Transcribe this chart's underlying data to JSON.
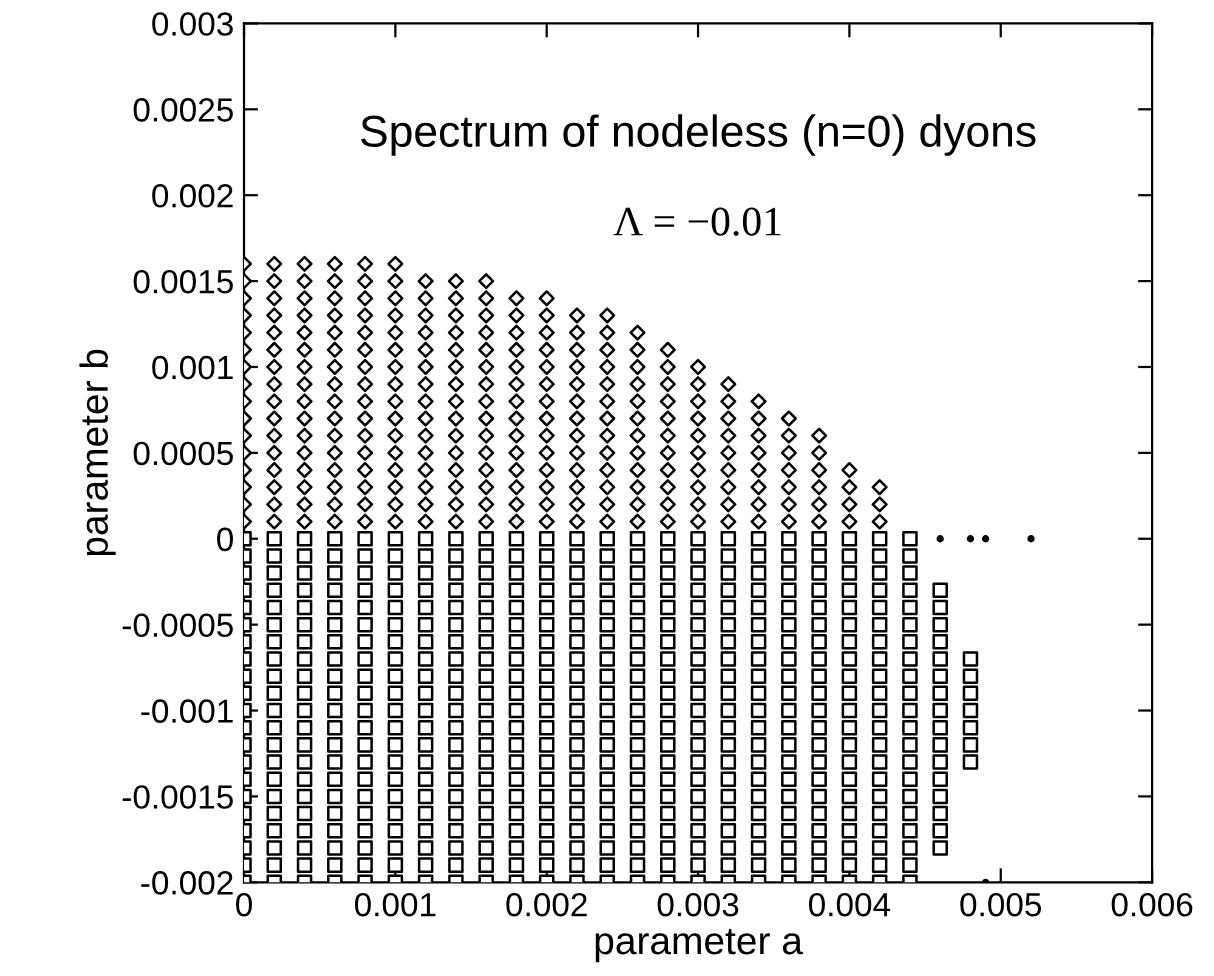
{
  "chart_data": {
    "type": "scatter",
    "title": "Spectrum of nodeless (n=0) dyons",
    "subtitle": "Λ = −0.01",
    "xlabel": "parameter a",
    "ylabel": "parameter b",
    "xlim": [
      0,
      0.006
    ],
    "ylim": [
      -0.002,
      0.003
    ],
    "xticks": [
      0,
      0.001,
      0.002,
      0.003,
      0.004,
      0.005,
      0.006
    ],
    "yticks": [
      -0.002,
      -0.0015,
      -0.001,
      -0.0005,
      0,
      0.0005,
      0.001,
      0.0015,
      0.002,
      0.0025,
      0.003
    ],
    "grid": false,
    "legend": false,
    "series": [
      {
        "type": "scatter",
        "marker": "diamond",
        "color": "#000000",
        "x": [
          0,
          0,
          0,
          0,
          0,
          0,
          0,
          0,
          0,
          0,
          0,
          0,
          0,
          0,
          0,
          0
        ],
        "values": [
          0.0001,
          0.0002,
          0.0003,
          0.0004,
          0.0005,
          0.0006,
          0.0007,
          0.0008,
          0.0009,
          0.001,
          0.0011,
          0.0012,
          0.0013,
          0.0014,
          0.0015,
          0.0016
        ]
      },
      {
        "type": "scatter",
        "marker": "diamond",
        "color": "#000000",
        "x": [
          0.0002,
          0.0002,
          0.0002,
          0.0002,
          0.0002,
          0.0002,
          0.0002,
          0.0002,
          0.0002,
          0.0002,
          0.0002,
          0.0002,
          0.0002,
          0.0002,
          0.0002,
          0.0002
        ],
        "values": [
          0.0001,
          0.0002,
          0.0003,
          0.0004,
          0.0005,
          0.0006,
          0.0007,
          0.0008,
          0.0009,
          0.001,
          0.0011,
          0.0012,
          0.0013,
          0.0014,
          0.0015,
          0.0016
        ]
      },
      {
        "type": "scatter",
        "marker": "diamond",
        "color": "#000000",
        "x": [
          0.0004,
          0.0004,
          0.0004,
          0.0004,
          0.0004,
          0.0004,
          0.0004,
          0.0004,
          0.0004,
          0.0004,
          0.0004,
          0.0004,
          0.0004,
          0.0004,
          0.0004,
          0.0004
        ],
        "values": [
          0.0001,
          0.0002,
          0.0003,
          0.0004,
          0.0005,
          0.0006,
          0.0007,
          0.0008,
          0.0009,
          0.001,
          0.0011,
          0.0012,
          0.0013,
          0.0014,
          0.0015,
          0.0016
        ]
      },
      {
        "type": "scatter",
        "marker": "diamond",
        "color": "#000000",
        "x": [
          0.0006,
          0.0006,
          0.0006,
          0.0006,
          0.0006,
          0.0006,
          0.0006,
          0.0006,
          0.0006,
          0.0006,
          0.0006,
          0.0006,
          0.0006,
          0.0006,
          0.0006,
          0.0006
        ],
        "values": [
          0.0001,
          0.0002,
          0.0003,
          0.0004,
          0.0005,
          0.0006,
          0.0007,
          0.0008,
          0.0009,
          0.001,
          0.0011,
          0.0012,
          0.0013,
          0.0014,
          0.0015,
          0.0016
        ]
      },
      {
        "type": "scatter",
        "marker": "diamond",
        "color": "#000000",
        "x": [
          0.0008,
          0.0008,
          0.0008,
          0.0008,
          0.0008,
          0.0008,
          0.0008,
          0.0008,
          0.0008,
          0.0008,
          0.0008,
          0.0008,
          0.0008,
          0.0008,
          0.0008,
          0.0008
        ],
        "values": [
          0.0001,
          0.0002,
          0.0003,
          0.0004,
          0.0005,
          0.0006,
          0.0007,
          0.0008,
          0.0009,
          0.001,
          0.0011,
          0.0012,
          0.0013,
          0.0014,
          0.0015,
          0.0016
        ]
      },
      {
        "type": "scatter",
        "marker": "diamond",
        "color": "#000000",
        "x": [
          0.001,
          0.001,
          0.001,
          0.001,
          0.001,
          0.001,
          0.001,
          0.001,
          0.001,
          0.001,
          0.001,
          0.001,
          0.001,
          0.001,
          0.001,
          0.001
        ],
        "values": [
          0.0001,
          0.0002,
          0.0003,
          0.0004,
          0.0005,
          0.0006,
          0.0007,
          0.0008,
          0.0009,
          0.001,
          0.0011,
          0.0012,
          0.0013,
          0.0014,
          0.0015,
          0.0016
        ]
      },
      {
        "type": "scatter",
        "marker": "diamond",
        "color": "#000000",
        "x": [
          0.0012,
          0.0012,
          0.0012,
          0.0012,
          0.0012,
          0.0012,
          0.0012,
          0.0012,
          0.0012,
          0.0012,
          0.0012,
          0.0012,
          0.0012,
          0.0012,
          0.0012
        ],
        "values": [
          0.0001,
          0.0002,
          0.0003,
          0.0004,
          0.0005,
          0.0006,
          0.0007,
          0.0008,
          0.0009,
          0.001,
          0.0011,
          0.0012,
          0.0013,
          0.0014,
          0.0015
        ]
      },
      {
        "type": "scatter",
        "marker": "diamond",
        "color": "#000000",
        "x": [
          0.0014,
          0.0014,
          0.0014,
          0.0014,
          0.0014,
          0.0014,
          0.0014,
          0.0014,
          0.0014,
          0.0014,
          0.0014,
          0.0014,
          0.0014,
          0.0014,
          0.0014
        ],
        "values": [
          0.0001,
          0.0002,
          0.0003,
          0.0004,
          0.0005,
          0.0006,
          0.0007,
          0.0008,
          0.0009,
          0.001,
          0.0011,
          0.0012,
          0.0013,
          0.0014,
          0.0015
        ]
      },
      {
        "type": "scatter",
        "marker": "diamond",
        "color": "#000000",
        "x": [
          0.0016,
          0.0016,
          0.0016,
          0.0016,
          0.0016,
          0.0016,
          0.0016,
          0.0016,
          0.0016,
          0.0016,
          0.0016,
          0.0016,
          0.0016,
          0.0016,
          0.0016
        ],
        "values": [
          0.0001,
          0.0002,
          0.0003,
          0.0004,
          0.0005,
          0.0006,
          0.0007,
          0.0008,
          0.0009,
          0.001,
          0.0011,
          0.0012,
          0.0013,
          0.0014,
          0.0015
        ]
      },
      {
        "type": "scatter",
        "marker": "diamond",
        "color": "#000000",
        "x": [
          0.0018,
          0.0018,
          0.0018,
          0.0018,
          0.0018,
          0.0018,
          0.0018,
          0.0018,
          0.0018,
          0.0018,
          0.0018,
          0.0018,
          0.0018,
          0.0018
        ],
        "values": [
          0.0001,
          0.0002,
          0.0003,
          0.0004,
          0.0005,
          0.0006,
          0.0007,
          0.0008,
          0.0009,
          0.001,
          0.0011,
          0.0012,
          0.0013,
          0.0014
        ]
      },
      {
        "type": "scatter",
        "marker": "diamond",
        "color": "#000000",
        "x": [
          0.002,
          0.002,
          0.002,
          0.002,
          0.002,
          0.002,
          0.002,
          0.002,
          0.002,
          0.002,
          0.002,
          0.002,
          0.002,
          0.002
        ],
        "values": [
          0.0001,
          0.0002,
          0.0003,
          0.0004,
          0.0005,
          0.0006,
          0.0007,
          0.0008,
          0.0009,
          0.001,
          0.0011,
          0.0012,
          0.0013,
          0.0014
        ]
      },
      {
        "type": "scatter",
        "marker": "diamond",
        "color": "#000000",
        "x": [
          0.0022,
          0.0022,
          0.0022,
          0.0022,
          0.0022,
          0.0022,
          0.0022,
          0.0022,
          0.0022,
          0.0022,
          0.0022,
          0.0022,
          0.0022
        ],
        "values": [
          0.0001,
          0.0002,
          0.0003,
          0.0004,
          0.0005,
          0.0006,
          0.0007,
          0.0008,
          0.0009,
          0.001,
          0.0011,
          0.0012,
          0.0013
        ]
      },
      {
        "type": "scatter",
        "marker": "diamond",
        "color": "#000000",
        "x": [
          0.0024,
          0.0024,
          0.0024,
          0.0024,
          0.0024,
          0.0024,
          0.0024,
          0.0024,
          0.0024,
          0.0024,
          0.0024,
          0.0024,
          0.0024
        ],
        "values": [
          0.0001,
          0.0002,
          0.0003,
          0.0004,
          0.0005,
          0.0006,
          0.0007,
          0.0008,
          0.0009,
          0.001,
          0.0011,
          0.0012,
          0.0013
        ]
      },
      {
        "type": "scatter",
        "marker": "diamond",
        "color": "#000000",
        "x": [
          0.0026,
          0.0026,
          0.0026,
          0.0026,
          0.0026,
          0.0026,
          0.0026,
          0.0026,
          0.0026,
          0.0026,
          0.0026,
          0.0026
        ],
        "values": [
          0.0001,
          0.0002,
          0.0003,
          0.0004,
          0.0005,
          0.0006,
          0.0007,
          0.0008,
          0.0009,
          0.001,
          0.0011,
          0.0012
        ]
      },
      {
        "type": "scatter",
        "marker": "diamond",
        "color": "#000000",
        "x": [
          0.0028,
          0.0028,
          0.0028,
          0.0028,
          0.0028,
          0.0028,
          0.0028,
          0.0028,
          0.0028,
          0.0028,
          0.0028
        ],
        "values": [
          0.0001,
          0.0002,
          0.0003,
          0.0004,
          0.0005,
          0.0006,
          0.0007,
          0.0008,
          0.0009,
          0.001,
          0.0011
        ]
      },
      {
        "type": "scatter",
        "marker": "diamond",
        "color": "#000000",
        "x": [
          0.003,
          0.003,
          0.003,
          0.003,
          0.003,
          0.003,
          0.003,
          0.003,
          0.003,
          0.003
        ],
        "values": [
          0.0001,
          0.0002,
          0.0003,
          0.0004,
          0.0005,
          0.0006,
          0.0007,
          0.0008,
          0.0009,
          0.001
        ]
      },
      {
        "type": "scatter",
        "marker": "diamond",
        "color": "#000000",
        "x": [
          0.0032,
          0.0032,
          0.0032,
          0.0032,
          0.0032,
          0.0032,
          0.0032,
          0.0032,
          0.0032
        ],
        "values": [
          0.0001,
          0.0002,
          0.0003,
          0.0004,
          0.0005,
          0.0006,
          0.0007,
          0.0008,
          0.0009
        ]
      },
      {
        "type": "scatter",
        "marker": "diamond",
        "color": "#000000",
        "x": [
          0.0034,
          0.0034,
          0.0034,
          0.0034,
          0.0034,
          0.0034,
          0.0034,
          0.0034
        ],
        "values": [
          0.0001,
          0.0002,
          0.0003,
          0.0004,
          0.0005,
          0.0006,
          0.0007,
          0.0008
        ]
      },
      {
        "type": "scatter",
        "marker": "diamond",
        "color": "#000000",
        "x": [
          0.0036,
          0.0036,
          0.0036,
          0.0036,
          0.0036,
          0.0036,
          0.0036
        ],
        "values": [
          0.0001,
          0.0002,
          0.0003,
          0.0004,
          0.0005,
          0.0006,
          0.0007
        ]
      },
      {
        "type": "scatter",
        "marker": "diamond",
        "color": "#000000",
        "x": [
          0.0038,
          0.0038,
          0.0038,
          0.0038,
          0.0038,
          0.0038
        ],
        "values": [
          0.0001,
          0.0002,
          0.0003,
          0.0004,
          0.0005,
          0.0006
        ]
      },
      {
        "type": "scatter",
        "marker": "diamond",
        "color": "#000000",
        "x": [
          0.004,
          0.004,
          0.004,
          0.004
        ],
        "values": [
          0.0001,
          0.0002,
          0.0003,
          0.0004
        ]
      },
      {
        "type": "scatter",
        "marker": "diamond",
        "color": "#000000",
        "x": [
          0.0042,
          0.0042,
          0.0042
        ],
        "values": [
          0.0001,
          0.0002,
          0.0003
        ]
      },
      {
        "type": "scatter",
        "marker": "square",
        "color": "#000000",
        "x": [
          0,
          0.0002,
          0.0004,
          0.0006,
          0.0008,
          0.001,
          0.0012,
          0.0014,
          0.0016,
          0.0018,
          0.002,
          0.0022,
          0.0024,
          0.0026,
          0.0028,
          0.003,
          0.0032,
          0.0034,
          0.0036,
          0.0038,
          0.004,
          0.0042,
          0.0044
        ],
        "values": [
          0,
          0,
          0,
          0,
          0,
          0,
          0,
          0,
          0,
          0,
          0,
          0,
          0,
          0,
          0,
          0,
          0,
          0,
          0,
          0,
          0,
          0,
          0
        ]
      },
      {
        "type": "scatter",
        "marker": "square",
        "color": "#000000",
        "x": [
          0,
          0,
          0,
          0,
          0,
          0,
          0,
          0,
          0,
          0,
          0,
          0,
          0,
          0,
          0,
          0,
          0,
          0,
          0,
          0
        ],
        "values": [
          -0.0001,
          -0.0002,
          -0.0003,
          -0.0004,
          -0.0005,
          -0.0006,
          -0.0007,
          -0.0008,
          -0.0009,
          -0.001,
          -0.0011,
          -0.0012,
          -0.0013,
          -0.0014,
          -0.0015,
          -0.0016,
          -0.0017,
          -0.0018,
          -0.0019,
          -0.002
        ]
      },
      {
        "type": "scatter",
        "marker": "square",
        "color": "#000000",
        "x": [
          0.0002,
          0.0002,
          0.0002,
          0.0002,
          0.0002,
          0.0002,
          0.0002,
          0.0002,
          0.0002,
          0.0002,
          0.0002,
          0.0002,
          0.0002,
          0.0002,
          0.0002,
          0.0002,
          0.0002,
          0.0002,
          0.0002,
          0.0002
        ],
        "values": [
          -0.0001,
          -0.0002,
          -0.0003,
          -0.0004,
          -0.0005,
          -0.0006,
          -0.0007,
          -0.0008,
          -0.0009,
          -0.001,
          -0.0011,
          -0.0012,
          -0.0013,
          -0.0014,
          -0.0015,
          -0.0016,
          -0.0017,
          -0.0018,
          -0.0019,
          -0.002
        ]
      },
      {
        "type": "scatter",
        "marker": "square",
        "color": "#000000",
        "x": [
          0.0004,
          0.0004,
          0.0004,
          0.0004,
          0.0004,
          0.0004,
          0.0004,
          0.0004,
          0.0004,
          0.0004,
          0.0004,
          0.0004,
          0.0004,
          0.0004,
          0.0004,
          0.0004,
          0.0004,
          0.0004,
          0.0004,
          0.0004
        ],
        "values": [
          -0.0001,
          -0.0002,
          -0.0003,
          -0.0004,
          -0.0005,
          -0.0006,
          -0.0007,
          -0.0008,
          -0.0009,
          -0.001,
          -0.0011,
          -0.0012,
          -0.0013,
          -0.0014,
          -0.0015,
          -0.0016,
          -0.0017,
          -0.0018,
          -0.0019,
          -0.002
        ]
      },
      {
        "type": "scatter",
        "marker": "square",
        "color": "#000000",
        "x": [
          0.0006,
          0.0006,
          0.0006,
          0.0006,
          0.0006,
          0.0006,
          0.0006,
          0.0006,
          0.0006,
          0.0006,
          0.0006,
          0.0006,
          0.0006,
          0.0006,
          0.0006,
          0.0006,
          0.0006,
          0.0006,
          0.0006,
          0.0006
        ],
        "values": [
          -0.0001,
          -0.0002,
          -0.0003,
          -0.0004,
          -0.0005,
          -0.0006,
          -0.0007,
          -0.0008,
          -0.0009,
          -0.001,
          -0.0011,
          -0.0012,
          -0.0013,
          -0.0014,
          -0.0015,
          -0.0016,
          -0.0017,
          -0.0018,
          -0.0019,
          -0.002
        ]
      },
      {
        "type": "scatter",
        "marker": "square",
        "color": "#000000",
        "x": [
          0.0008,
          0.0008,
          0.0008,
          0.0008,
          0.0008,
          0.0008,
          0.0008,
          0.0008,
          0.0008,
          0.0008,
          0.0008,
          0.0008,
          0.0008,
          0.0008,
          0.0008,
          0.0008,
          0.0008,
          0.0008,
          0.0008,
          0.0008
        ],
        "values": [
          -0.0001,
          -0.0002,
          -0.0003,
          -0.0004,
          -0.0005,
          -0.0006,
          -0.0007,
          -0.0008,
          -0.0009,
          -0.001,
          -0.0011,
          -0.0012,
          -0.0013,
          -0.0014,
          -0.0015,
          -0.0016,
          -0.0017,
          -0.0018,
          -0.0019,
          -0.002
        ]
      },
      {
        "type": "scatter",
        "marker": "square",
        "color": "#000000",
        "x": [
          0.001,
          0.001,
          0.001,
          0.001,
          0.001,
          0.001,
          0.001,
          0.001,
          0.001,
          0.001,
          0.001,
          0.001,
          0.001,
          0.001,
          0.001,
          0.001,
          0.001,
          0.001,
          0.001,
          0.001
        ],
        "values": [
          -0.0001,
          -0.0002,
          -0.0003,
          -0.0004,
          -0.0005,
          -0.0006,
          -0.0007,
          -0.0008,
          -0.0009,
          -0.001,
          -0.0011,
          -0.0012,
          -0.0013,
          -0.0014,
          -0.0015,
          -0.0016,
          -0.0017,
          -0.0018,
          -0.0019,
          -0.002
        ]
      },
      {
        "type": "scatter",
        "marker": "square",
        "color": "#000000",
        "x": [
          0.0012,
          0.0012,
          0.0012,
          0.0012,
          0.0012,
          0.0012,
          0.0012,
          0.0012,
          0.0012,
          0.0012,
          0.0012,
          0.0012,
          0.0012,
          0.0012,
          0.0012,
          0.0012,
          0.0012,
          0.0012,
          0.0012,
          0.0012
        ],
        "values": [
          -0.0001,
          -0.0002,
          -0.0003,
          -0.0004,
          -0.0005,
          -0.0006,
          -0.0007,
          -0.0008,
          -0.0009,
          -0.001,
          -0.0011,
          -0.0012,
          -0.0013,
          -0.0014,
          -0.0015,
          -0.0016,
          -0.0017,
          -0.0018,
          -0.0019,
          -0.002
        ]
      },
      {
        "type": "scatter",
        "marker": "square",
        "color": "#000000",
        "x": [
          0.0014,
          0.0014,
          0.0014,
          0.0014,
          0.0014,
          0.0014,
          0.0014,
          0.0014,
          0.0014,
          0.0014,
          0.0014,
          0.0014,
          0.0014,
          0.0014,
          0.0014,
          0.0014,
          0.0014,
          0.0014,
          0.0014,
          0.0014
        ],
        "values": [
          -0.0001,
          -0.0002,
          -0.0003,
          -0.0004,
          -0.0005,
          -0.0006,
          -0.0007,
          -0.0008,
          -0.0009,
          -0.001,
          -0.0011,
          -0.0012,
          -0.0013,
          -0.0014,
          -0.0015,
          -0.0016,
          -0.0017,
          -0.0018,
          -0.0019,
          -0.002
        ]
      },
      {
        "type": "scatter",
        "marker": "square",
        "color": "#000000",
        "x": [
          0.0016,
          0.0016,
          0.0016,
          0.0016,
          0.0016,
          0.0016,
          0.0016,
          0.0016,
          0.0016,
          0.0016,
          0.0016,
          0.0016,
          0.0016,
          0.0016,
          0.0016,
          0.0016,
          0.0016,
          0.0016,
          0.0016,
          0.0016
        ],
        "values": [
          -0.0001,
          -0.0002,
          -0.0003,
          -0.0004,
          -0.0005,
          -0.0006,
          -0.0007,
          -0.0008,
          -0.0009,
          -0.001,
          -0.0011,
          -0.0012,
          -0.0013,
          -0.0014,
          -0.0015,
          -0.0016,
          -0.0017,
          -0.0018,
          -0.0019,
          -0.002
        ]
      },
      {
        "type": "scatter",
        "marker": "square",
        "color": "#000000",
        "x": [
          0.0018,
          0.0018,
          0.0018,
          0.0018,
          0.0018,
          0.0018,
          0.0018,
          0.0018,
          0.0018,
          0.0018,
          0.0018,
          0.0018,
          0.0018,
          0.0018,
          0.0018,
          0.0018,
          0.0018,
          0.0018,
          0.0018,
          0.0018
        ],
        "values": [
          -0.0001,
          -0.0002,
          -0.0003,
          -0.0004,
          -0.0005,
          -0.0006,
          -0.0007,
          -0.0008,
          -0.0009,
          -0.001,
          -0.0011,
          -0.0012,
          -0.0013,
          -0.0014,
          -0.0015,
          -0.0016,
          -0.0017,
          -0.0018,
          -0.0019,
          -0.002
        ]
      },
      {
        "type": "scatter",
        "marker": "square",
        "color": "#000000",
        "x": [
          0.002,
          0.002,
          0.002,
          0.002,
          0.002,
          0.002,
          0.002,
          0.002,
          0.002,
          0.002,
          0.002,
          0.002,
          0.002,
          0.002,
          0.002,
          0.002,
          0.002,
          0.002,
          0.002,
          0.002
        ],
        "values": [
          -0.0001,
          -0.0002,
          -0.0003,
          -0.0004,
          -0.0005,
          -0.0006,
          -0.0007,
          -0.0008,
          -0.0009,
          -0.001,
          -0.0011,
          -0.0012,
          -0.0013,
          -0.0014,
          -0.0015,
          -0.0016,
          -0.0017,
          -0.0018,
          -0.0019,
          -0.002
        ]
      },
      {
        "type": "scatter",
        "marker": "square",
        "color": "#000000",
        "x": [
          0.0022,
          0.0022,
          0.0022,
          0.0022,
          0.0022,
          0.0022,
          0.0022,
          0.0022,
          0.0022,
          0.0022,
          0.0022,
          0.0022,
          0.0022,
          0.0022,
          0.0022,
          0.0022,
          0.0022,
          0.0022,
          0.0022,
          0.0022
        ],
        "values": [
          -0.0001,
          -0.0002,
          -0.0003,
          -0.0004,
          -0.0005,
          -0.0006,
          -0.0007,
          -0.0008,
          -0.0009,
          -0.001,
          -0.0011,
          -0.0012,
          -0.0013,
          -0.0014,
          -0.0015,
          -0.0016,
          -0.0017,
          -0.0018,
          -0.0019,
          -0.002
        ]
      },
      {
        "type": "scatter",
        "marker": "square",
        "color": "#000000",
        "x": [
          0.0024,
          0.0024,
          0.0024,
          0.0024,
          0.0024,
          0.0024,
          0.0024,
          0.0024,
          0.0024,
          0.0024,
          0.0024,
          0.0024,
          0.0024,
          0.0024,
          0.0024,
          0.0024,
          0.0024,
          0.0024,
          0.0024,
          0.0024
        ],
        "values": [
          -0.0001,
          -0.0002,
          -0.0003,
          -0.0004,
          -0.0005,
          -0.0006,
          -0.0007,
          -0.0008,
          -0.0009,
          -0.001,
          -0.0011,
          -0.0012,
          -0.0013,
          -0.0014,
          -0.0015,
          -0.0016,
          -0.0017,
          -0.0018,
          -0.0019,
          -0.002
        ]
      },
      {
        "type": "scatter",
        "marker": "square",
        "color": "#000000",
        "x": [
          0.0026,
          0.0026,
          0.0026,
          0.0026,
          0.0026,
          0.0026,
          0.0026,
          0.0026,
          0.0026,
          0.0026,
          0.0026,
          0.0026,
          0.0026,
          0.0026,
          0.0026,
          0.0026,
          0.0026,
          0.0026,
          0.0026,
          0.0026
        ],
        "values": [
          -0.0001,
          -0.0002,
          -0.0003,
          -0.0004,
          -0.0005,
          -0.0006,
          -0.0007,
          -0.0008,
          -0.0009,
          -0.001,
          -0.0011,
          -0.0012,
          -0.0013,
          -0.0014,
          -0.0015,
          -0.0016,
          -0.0017,
          -0.0018,
          -0.0019,
          -0.002
        ]
      },
      {
        "type": "scatter",
        "marker": "square",
        "color": "#000000",
        "x": [
          0.0028,
          0.0028,
          0.0028,
          0.0028,
          0.0028,
          0.0028,
          0.0028,
          0.0028,
          0.0028,
          0.0028,
          0.0028,
          0.0028,
          0.0028,
          0.0028,
          0.0028,
          0.0028,
          0.0028,
          0.0028,
          0.0028,
          0.0028
        ],
        "values": [
          -0.0001,
          -0.0002,
          -0.0003,
          -0.0004,
          -0.0005,
          -0.0006,
          -0.0007,
          -0.0008,
          -0.0009,
          -0.001,
          -0.0011,
          -0.0012,
          -0.0013,
          -0.0014,
          -0.0015,
          -0.0016,
          -0.0017,
          -0.0018,
          -0.0019,
          -0.002
        ]
      },
      {
        "type": "scatter",
        "marker": "square",
        "color": "#000000",
        "x": [
          0.003,
          0.003,
          0.003,
          0.003,
          0.003,
          0.003,
          0.003,
          0.003,
          0.003,
          0.003,
          0.003,
          0.003,
          0.003,
          0.003,
          0.003,
          0.003,
          0.003,
          0.003,
          0.003,
          0.003
        ],
        "values": [
          -0.0001,
          -0.0002,
          -0.0003,
          -0.0004,
          -0.0005,
          -0.0006,
          -0.0007,
          -0.0008,
          -0.0009,
          -0.001,
          -0.0011,
          -0.0012,
          -0.0013,
          -0.0014,
          -0.0015,
          -0.0016,
          -0.0017,
          -0.0018,
          -0.0019,
          -0.002
        ]
      },
      {
        "type": "scatter",
        "marker": "square",
        "color": "#000000",
        "x": [
          0.0032,
          0.0032,
          0.0032,
          0.0032,
          0.0032,
          0.0032,
          0.0032,
          0.0032,
          0.0032,
          0.0032,
          0.0032,
          0.0032,
          0.0032,
          0.0032,
          0.0032,
          0.0032,
          0.0032,
          0.0032,
          0.0032,
          0.0032
        ],
        "values": [
          -0.0001,
          -0.0002,
          -0.0003,
          -0.0004,
          -0.0005,
          -0.0006,
          -0.0007,
          -0.0008,
          -0.0009,
          -0.001,
          -0.0011,
          -0.0012,
          -0.0013,
          -0.0014,
          -0.0015,
          -0.0016,
          -0.0017,
          -0.0018,
          -0.0019,
          -0.002
        ]
      },
      {
        "type": "scatter",
        "marker": "square",
        "color": "#000000",
        "x": [
          0.0034,
          0.0034,
          0.0034,
          0.0034,
          0.0034,
          0.0034,
          0.0034,
          0.0034,
          0.0034,
          0.0034,
          0.0034,
          0.0034,
          0.0034,
          0.0034,
          0.0034,
          0.0034,
          0.0034,
          0.0034,
          0.0034,
          0.0034
        ],
        "values": [
          -0.0001,
          -0.0002,
          -0.0003,
          -0.0004,
          -0.0005,
          -0.0006,
          -0.0007,
          -0.0008,
          -0.0009,
          -0.001,
          -0.0011,
          -0.0012,
          -0.0013,
          -0.0014,
          -0.0015,
          -0.0016,
          -0.0017,
          -0.0018,
          -0.0019,
          -0.002
        ]
      },
      {
        "type": "scatter",
        "marker": "square",
        "color": "#000000",
        "x": [
          0.0036,
          0.0036,
          0.0036,
          0.0036,
          0.0036,
          0.0036,
          0.0036,
          0.0036,
          0.0036,
          0.0036,
          0.0036,
          0.0036,
          0.0036,
          0.0036,
          0.0036,
          0.0036,
          0.0036,
          0.0036,
          0.0036,
          0.0036
        ],
        "values": [
          -0.0001,
          -0.0002,
          -0.0003,
          -0.0004,
          -0.0005,
          -0.0006,
          -0.0007,
          -0.0008,
          -0.0009,
          -0.001,
          -0.0011,
          -0.0012,
          -0.0013,
          -0.0014,
          -0.0015,
          -0.0016,
          -0.0017,
          -0.0018,
          -0.0019,
          -0.002
        ]
      },
      {
        "type": "scatter",
        "marker": "square",
        "color": "#000000",
        "x": [
          0.0038,
          0.0038,
          0.0038,
          0.0038,
          0.0038,
          0.0038,
          0.0038,
          0.0038,
          0.0038,
          0.0038,
          0.0038,
          0.0038,
          0.0038,
          0.0038,
          0.0038,
          0.0038,
          0.0038,
          0.0038,
          0.0038,
          0.0038
        ],
        "values": [
          -0.0001,
          -0.0002,
          -0.0003,
          -0.0004,
          -0.0005,
          -0.0006,
          -0.0007,
          -0.0008,
          -0.0009,
          -0.001,
          -0.0011,
          -0.0012,
          -0.0013,
          -0.0014,
          -0.0015,
          -0.0016,
          -0.0017,
          -0.0018,
          -0.0019,
          -0.002
        ]
      },
      {
        "type": "scatter",
        "marker": "square",
        "color": "#000000",
        "x": [
          0.004,
          0.004,
          0.004,
          0.004,
          0.004,
          0.004,
          0.004,
          0.004,
          0.004,
          0.004,
          0.004,
          0.004,
          0.004,
          0.004,
          0.004,
          0.004,
          0.004,
          0.004,
          0.004,
          0.004
        ],
        "values": [
          -0.0001,
          -0.0002,
          -0.0003,
          -0.0004,
          -0.0005,
          -0.0006,
          -0.0007,
          -0.0008,
          -0.0009,
          -0.001,
          -0.0011,
          -0.0012,
          -0.0013,
          -0.0014,
          -0.0015,
          -0.0016,
          -0.0017,
          -0.0018,
          -0.0019,
          -0.002
        ]
      },
      {
        "type": "scatter",
        "marker": "square",
        "color": "#000000",
        "x": [
          0.0042,
          0.0042,
          0.0042,
          0.0042,
          0.0042,
          0.0042,
          0.0042,
          0.0042,
          0.0042,
          0.0042,
          0.0042,
          0.0042,
          0.0042,
          0.0042,
          0.0042,
          0.0042,
          0.0042,
          0.0042,
          0.0042,
          0.0042
        ],
        "values": [
          -0.0001,
          -0.0002,
          -0.0003,
          -0.0004,
          -0.0005,
          -0.0006,
          -0.0007,
          -0.0008,
          -0.0009,
          -0.001,
          -0.0011,
          -0.0012,
          -0.0013,
          -0.0014,
          -0.0015,
          -0.0016,
          -0.0017,
          -0.0018,
          -0.0019,
          -0.002
        ]
      },
      {
        "type": "scatter",
        "marker": "square",
        "color": "#000000",
        "x": [
          0.0044,
          0.0044,
          0.0044,
          0.0044,
          0.0044,
          0.0044,
          0.0044,
          0.0044,
          0.0044,
          0.0044,
          0.0044,
          0.0044,
          0.0044,
          0.0044,
          0.0044,
          0.0044,
          0.0044,
          0.0044,
          0.0044,
          0.0044
        ],
        "values": [
          -0.0001,
          -0.0002,
          -0.0003,
          -0.0004,
          -0.0005,
          -0.0006,
          -0.0007,
          -0.0008,
          -0.0009,
          -0.001,
          -0.0011,
          -0.0012,
          -0.0013,
          -0.0014,
          -0.0015,
          -0.0016,
          -0.0017,
          -0.0018,
          -0.0019,
          -0.002
        ]
      },
      {
        "type": "scatter",
        "marker": "square",
        "color": "#000000",
        "x": [
          0.0046,
          0.0046,
          0.0046,
          0.0046,
          0.0046,
          0.0046,
          0.0046,
          0.0046,
          0.0046,
          0.0046,
          0.0046,
          0.0046,
          0.0046,
          0.0046,
          0.0046,
          0.0046
        ],
        "values": [
          -0.0003,
          -0.0004,
          -0.0005,
          -0.0006,
          -0.0007,
          -0.0008,
          -0.0009,
          -0.001,
          -0.0011,
          -0.0012,
          -0.0013,
          -0.0014,
          -0.0015,
          -0.0016,
          -0.0017,
          -0.0018
        ]
      },
      {
        "type": "scatter",
        "marker": "square",
        "color": "#000000",
        "x": [
          0.0048,
          0.0048,
          0.0048,
          0.0048,
          0.0048,
          0.0048,
          0.0048
        ],
        "values": [
          -0.0007,
          -0.0008,
          -0.0009,
          -0.001,
          -0.0011,
          -0.0012,
          -0.0013
        ]
      },
      {
        "type": "scatter",
        "marker": "circle",
        "color": "#000000",
        "x": [
          0.0046,
          0.0048,
          0.0049,
          0.0052,
          0.0049
        ],
        "values": [
          0,
          0,
          0,
          0,
          -0.002
        ]
      }
    ]
  }
}
